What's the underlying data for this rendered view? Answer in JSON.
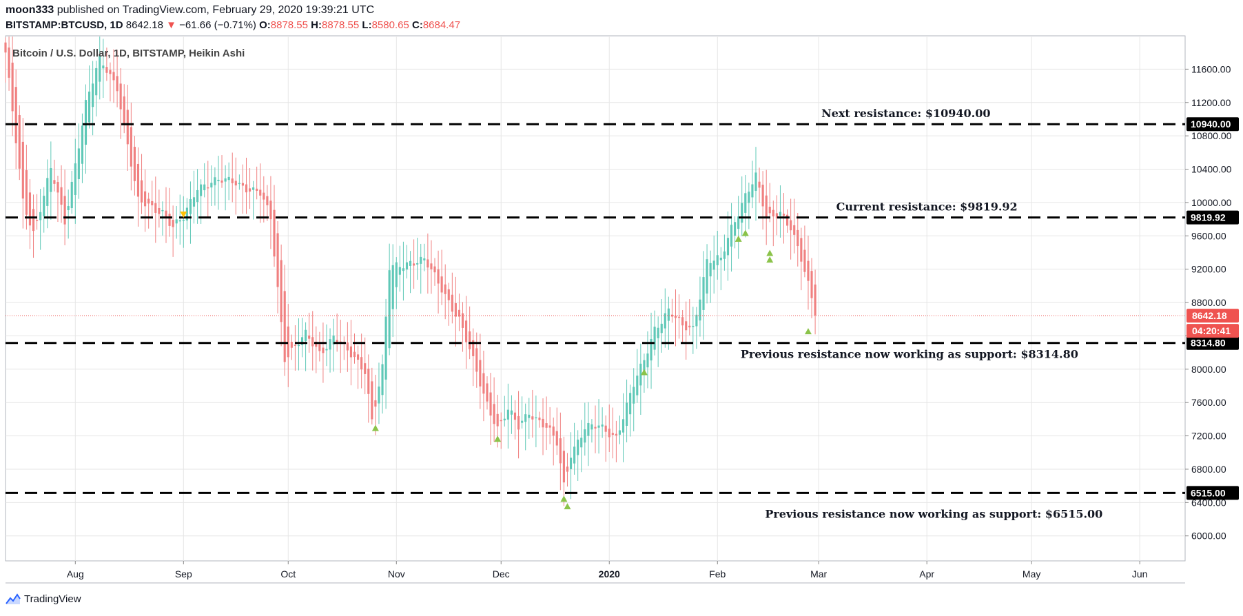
{
  "header": {
    "publisher_line": {
      "user": "moon333",
      "text": " published on TradingView.com, February 29, 2020 19:39:21 UTC"
    },
    "symbol": "BITSTAMP:BTCUSD, 1D",
    "last": "8642.18",
    "change": "−61.66 (−0.71%)",
    "ohlc": {
      "o_label": "O:",
      "o": "8878.55",
      "h_label": "H:",
      "h": "8878.55",
      "l_label": "L:",
      "l": "8580.65",
      "c_label": "C:",
      "c": "8684.47"
    }
  },
  "footer": {
    "brand": "TradingView"
  },
  "colors": {
    "up": "#26a69a",
    "up_light": "#5fc8b7",
    "down": "#ef5350",
    "down_light": "#f08080",
    "grid": "#e6e6e6",
    "text": "#131722",
    "marker_up": "#8bc34a",
    "marker_down": "#ffc107",
    "dash_line": "#000000",
    "price_tag_red": "#ef5350"
  },
  "chart_data": {
    "type": "candlestick",
    "title": "Bitcoin / U.S. Dollar, 1D, BITSTAMP, Heikin Ashi",
    "ylim": [
      5700,
      12000
    ],
    "x_tick_labels": [
      "Aug",
      "Sep",
      "Oct",
      "Nov",
      "Dec",
      "2020",
      "Feb",
      "Mar",
      "Apr",
      "May",
      "Jun"
    ],
    "x_tick_days": [
      20,
      51,
      81,
      112,
      142,
      173,
      204,
      233,
      264,
      294,
      325
    ],
    "x_range_days": [
      0,
      338
    ],
    "y_ticks": [
      6000,
      6400,
      6800,
      7200,
      7600,
      8000,
      8400,
      8800,
      9200,
      9600,
      10000,
      10400,
      10800,
      11200,
      11600
    ],
    "current_price": 8642.18,
    "current_price_label": "8642.18",
    "countdown_label": "04:20:41",
    "levels": [
      {
        "price": 10940.0,
        "tag": "10940.00",
        "label": "Next resistance: $10940.00",
        "label_day": 258
      },
      {
        "price": 9819.92,
        "tag": "9819.92",
        "label": "Current resistance: $9819.92",
        "label_day": 264
      },
      {
        "price": 8314.8,
        "tag": "8314.80",
        "label": "Previous resistance now working as support: $8314.80",
        "label_day": 259
      },
      {
        "price": 6515.0,
        "tag": "6515.00",
        "label": "Previous resistance now working as support: $6515.00",
        "label_day": 266
      }
    ],
    "anchors": [
      [
        0,
        11800
      ],
      [
        5,
        10000
      ],
      [
        8,
        9650
      ],
      [
        13,
        10400
      ],
      [
        17,
        9750
      ],
      [
        23,
        11200
      ],
      [
        27,
        11700
      ],
      [
        32,
        11400
      ],
      [
        38,
        10000
      ],
      [
        45,
        9900
      ],
      [
        48,
        9700
      ],
      [
        51,
        9800
      ],
      [
        55,
        10200
      ],
      [
        59,
        10250
      ],
      [
        66,
        10250
      ],
      [
        73,
        10100
      ],
      [
        76,
        9800
      ],
      [
        80,
        8150
      ],
      [
        86,
        8400
      ],
      [
        90,
        8200
      ],
      [
        94,
        8400
      ],
      [
        98,
        8200
      ],
      [
        103,
        8000
      ],
      [
        105,
        7400
      ],
      [
        108,
        8000
      ],
      [
        110,
        9200
      ],
      [
        116,
        9300
      ],
      [
        120,
        9300
      ],
      [
        126,
        8900
      ],
      [
        130,
        8600
      ],
      [
        137,
        7700
      ],
      [
        141,
        7300
      ],
      [
        144,
        7500
      ],
      [
        147,
        7300
      ],
      [
        150,
        7500
      ],
      [
        155,
        7300
      ],
      [
        158,
        7100
      ],
      [
        160,
        6600
      ],
      [
        162,
        7000
      ],
      [
        166,
        7300
      ],
      [
        170,
        7300
      ],
      [
        175,
        7200
      ],
      [
        180,
        7800
      ],
      [
        183,
        8100
      ],
      [
        186,
        8500
      ],
      [
        190,
        8700
      ],
      [
        194,
        8500
      ],
      [
        197,
        8500
      ],
      [
        201,
        9300
      ],
      [
        205,
        9300
      ],
      [
        208,
        9700
      ],
      [
        212,
        10100
      ],
      [
        215,
        10300
      ],
      [
        218,
        9800
      ],
      [
        222,
        9900
      ],
      [
        225,
        9700
      ],
      [
        228,
        9300
      ],
      [
        232,
        8700
      ]
    ],
    "markers_up": [
      [
        106,
        7300
      ],
      [
        141,
        7170
      ],
      [
        160,
        6450
      ],
      [
        161,
        6360
      ],
      [
        183,
        7970
      ],
      [
        210,
        9570
      ],
      [
        212,
        9640
      ],
      [
        219,
        9400
      ],
      [
        219,
        9320
      ],
      [
        230,
        8460
      ]
    ],
    "markers_down": [
      [
        51,
        9850
      ]
    ]
  }
}
